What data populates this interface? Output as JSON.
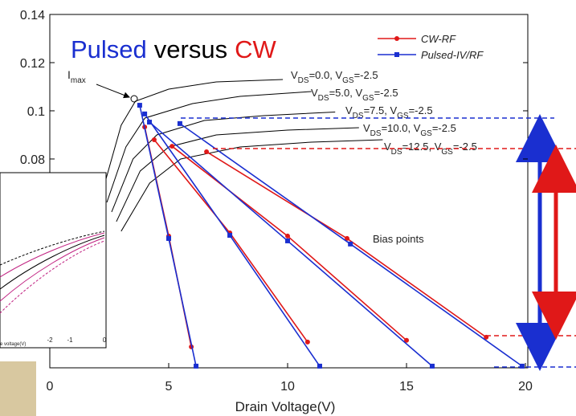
{
  "chart_data": {
    "type": "line",
    "title_parts": [
      {
        "text": "Pulsed",
        "color": "#1a2fd0"
      },
      {
        "text": "versus",
        "color": "#000000"
      },
      {
        "text": "CW",
        "color": "#e01818"
      }
    ],
    "x_label": "Drain Voltage(V)",
    "xlim": [
      0,
      20.1
    ],
    "xticks": [
      0,
      5,
      10,
      15,
      20
    ],
    "ylim": [
      -0.0067,
      0.14
    ],
    "yticks": [
      0.08,
      0.1,
      0.12,
      0.14
    ],
    "imax_label": {
      "main": "I",
      "sub": "max"
    },
    "bias_label": "Bias points",
    "series": [
      {
        "name": "CW-RF",
        "color": "#e01818",
        "marker": "circle",
        "lines": [
          {
            "x": [
              3.99,
              5.0,
              5.95
            ],
            "y": [
              0.0933,
              0.048,
              0.002
            ]
          },
          {
            "x": [
              4.39,
              7.57,
              10.84
            ],
            "y": [
              0.088,
              0.0493,
              0.004
            ]
          },
          {
            "x": [
              5.14,
              10.0,
              15.0
            ],
            "y": [
              0.0853,
              0.048,
              0.0047
            ]
          },
          {
            "x": [
              6.59,
              12.5,
              18.35
            ],
            "y": [
              0.083,
              0.047,
              0.006
            ]
          }
        ]
      },
      {
        "name": "Pulsed-IV/RF",
        "color": "#1a2fd0",
        "marker": "square",
        "lines": [
          {
            "x": [
              3.78,
              5.0,
              6.15
            ],
            "y": [
              0.1023,
              0.047,
              -0.006
            ]
          },
          {
            "x": [
              3.99,
              7.57,
              11.35
            ],
            "y": [
              0.0987,
              0.0483,
              -0.006
            ]
          },
          {
            "x": [
              4.19,
              10.0,
              16.08
            ],
            "y": [
              0.0953,
              0.046,
              -0.006
            ]
          },
          {
            "x": [
              5.47,
              12.64,
              19.86
            ],
            "y": [
              0.0947,
              0.0447,
              -0.006
            ]
          }
        ]
      }
    ],
    "iv_curves": [
      {
        "label": [
          "V",
          "DS",
          "=0.0, V",
          "GS",
          "=-2.5"
        ],
        "x": [
          2.2,
          3.0,
          3.6,
          5,
          7,
          9.8
        ],
        "y": [
          0.066,
          0.094,
          0.104,
          0.109,
          0.112,
          0.113
        ]
      },
      {
        "label": [
          "V",
          "DS",
          "=5.0, V",
          "GS",
          "=-2.5"
        ],
        "x": [
          2.4,
          3.2,
          4,
          6,
          8,
          11
        ],
        "y": [
          0.062,
          0.085,
          0.097,
          0.103,
          0.106,
          0.108
        ]
      },
      {
        "label": [
          "V",
          "DS",
          "=7.5, V",
          "GS",
          "=-2.5"
        ],
        "x": [
          2.6,
          3.5,
          4.5,
          6.5,
          9,
          12
        ],
        "y": [
          0.058,
          0.08,
          0.09,
          0.096,
          0.098,
          0.0995
        ]
      },
      {
        "label": [
          "V",
          "DS",
          "=10.0, V",
          "GS",
          "=-2.5"
        ],
        "x": [
          2.8,
          3.8,
          5,
          7,
          10,
          13
        ],
        "y": [
          0.054,
          0.075,
          0.085,
          0.09,
          0.092,
          0.093
        ]
      },
      {
        "label": [
          "V",
          "DS",
          "=12.5, V",
          "GS",
          "=-2.5"
        ],
        "x": [
          3.0,
          4.2,
          5.5,
          8,
          11,
          14
        ],
        "y": [
          0.05,
          0.07,
          0.08,
          0.085,
          0.087,
          0.088
        ]
      }
    ],
    "inset_ticks": [
      "-2",
      "-1",
      "0"
    ],
    "inset_label": "e voltage(V)"
  }
}
